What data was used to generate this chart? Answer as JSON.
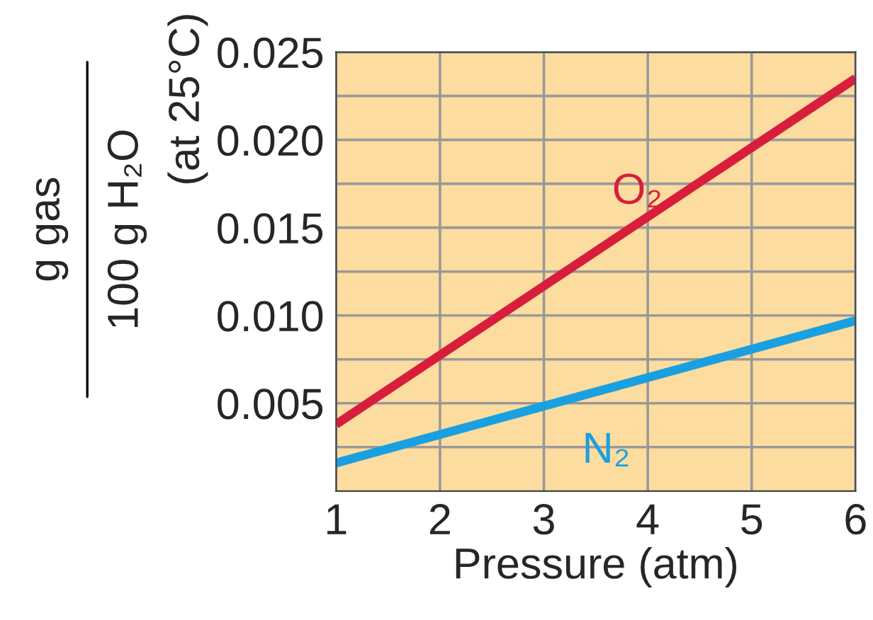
{
  "chart_data": {
    "type": "line",
    "xlabel": "Pressure (atm)",
    "ylabel": "g gas",
    "annotations": [
      "100 g H₂O",
      "(at 25°C)"
    ],
    "x": [
      1,
      6
    ],
    "series": [
      {
        "name": "O₂",
        "color": "#d81e3c",
        "values": [
          0.0038,
          0.0235
        ]
      },
      {
        "name": "N₂",
        "color": "#1aa0e0",
        "values": [
          0.0016,
          0.0097
        ]
      }
    ],
    "xlim": [
      1,
      6
    ],
    "xticks": [
      1,
      2,
      3,
      4,
      5,
      6
    ],
    "ylim": [
      0,
      0.025
    ],
    "yticks": [
      {
        "value": 0.0025,
        "label": null
      },
      {
        "value": 0.005,
        "label": "0.005"
      },
      {
        "value": 0.0075,
        "label": null
      },
      {
        "value": 0.01,
        "label": "0.010"
      },
      {
        "value": 0.0125,
        "label": null
      },
      {
        "value": 0.015,
        "label": "0.015"
      },
      {
        "value": 0.0175,
        "label": null
      },
      {
        "value": 0.02,
        "label": "0.020"
      },
      {
        "value": 0.0225,
        "label": null
      },
      {
        "value": 0.025,
        "label": "0.025"
      }
    ],
    "grid": true,
    "legend": false,
    "marker": "none",
    "line_style": "solid"
  }
}
